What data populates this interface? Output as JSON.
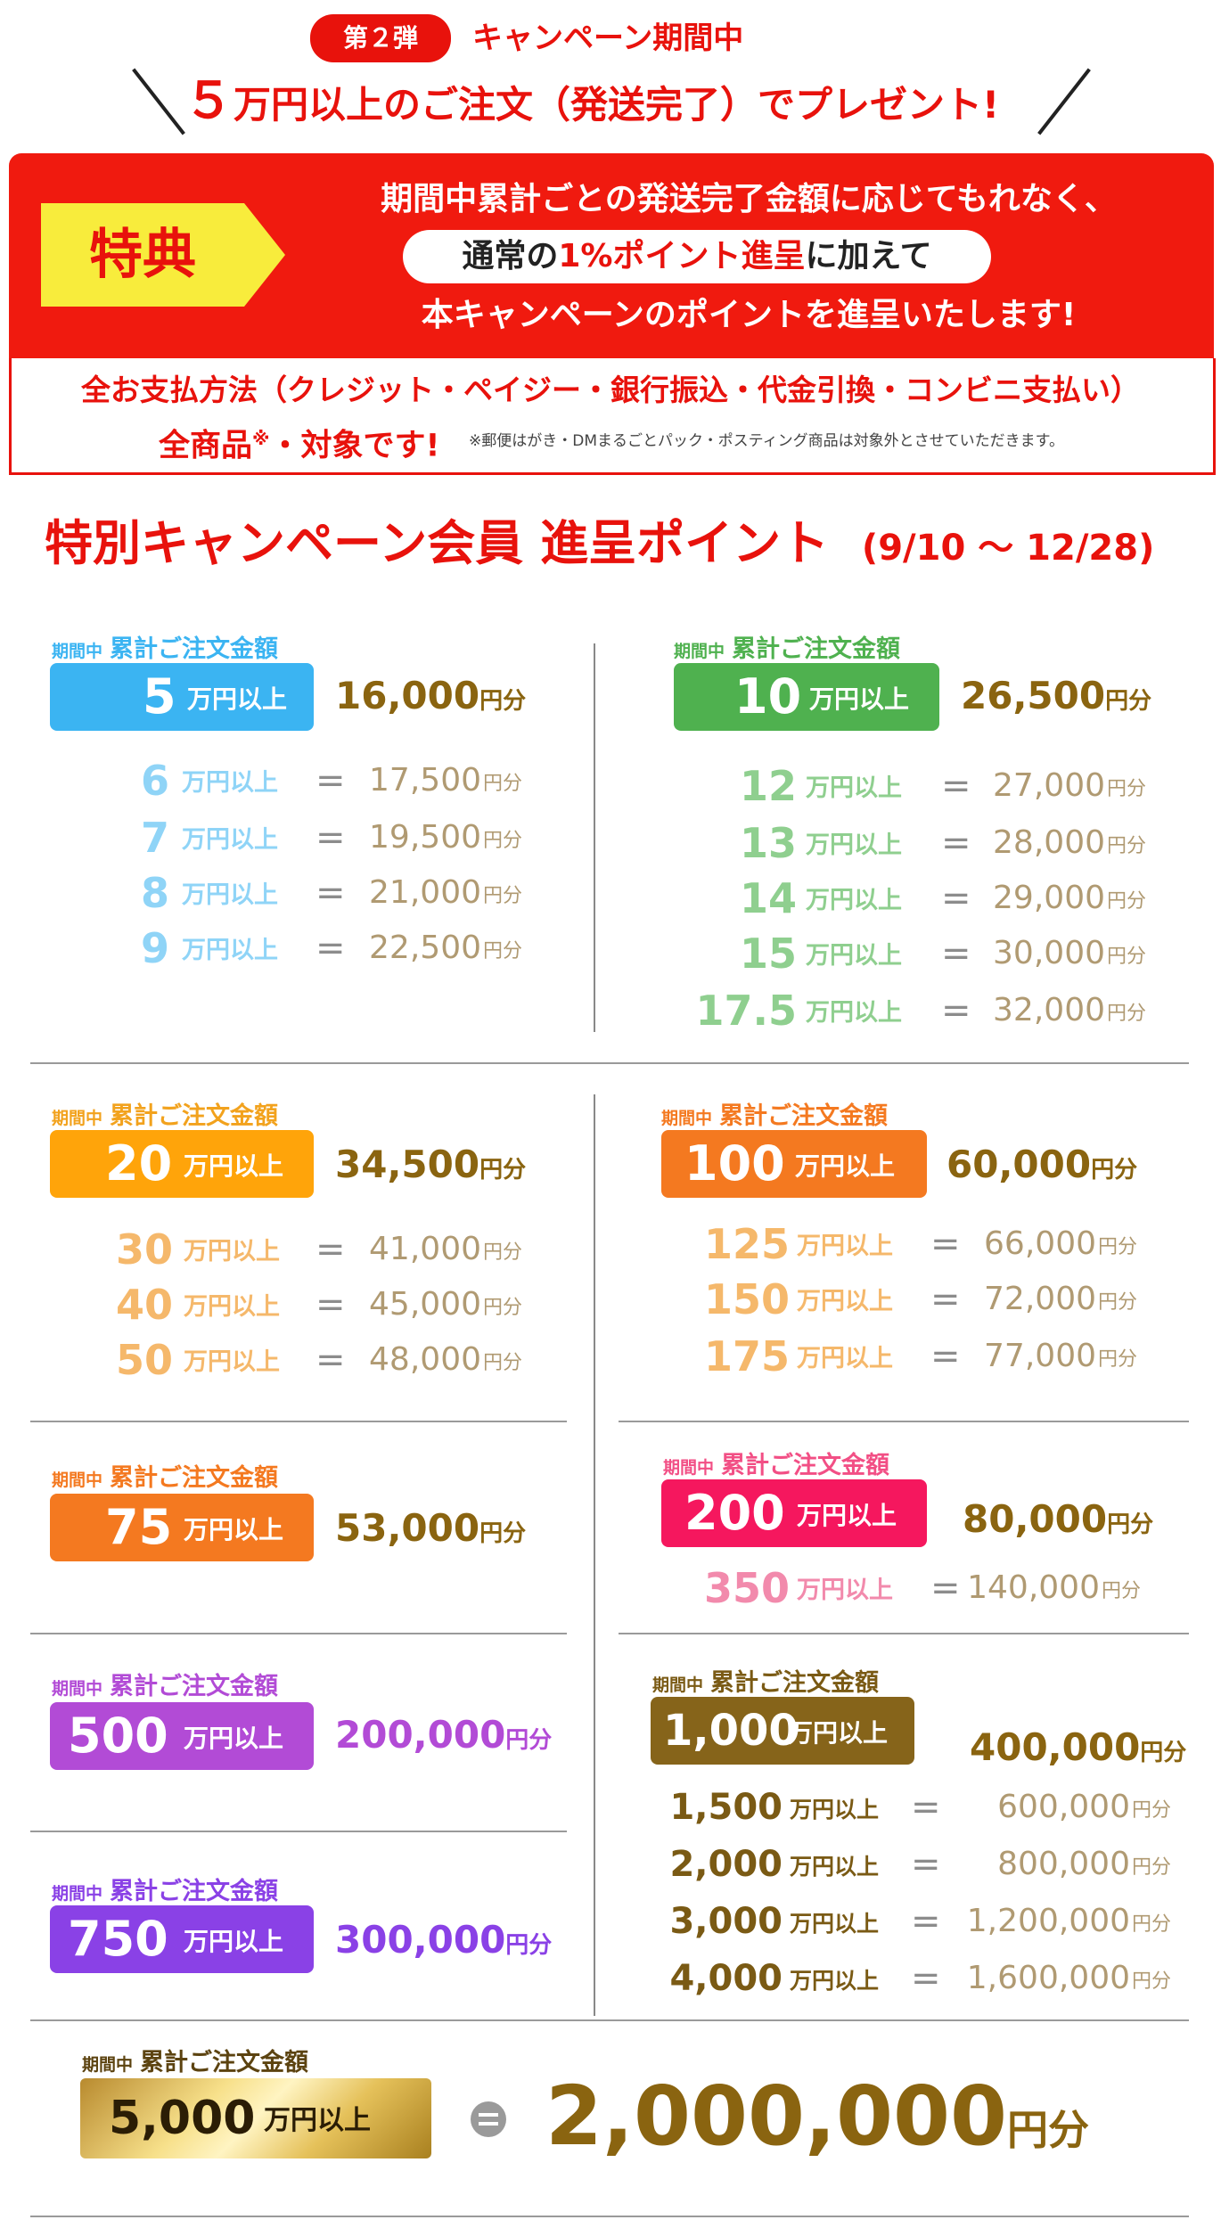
{
  "header": {
    "round_badge": "第２弾",
    "campaign_period": "キャンペーン期間中",
    "headline_num": "５",
    "headline_rest": "万円以上のご注文（発送完了）でプレゼント!"
  },
  "benefit": {
    "tag": "特典",
    "line1": "期間中累計ごとの発送完了金額に応じてもれなく、",
    "pill_pre": "通常の",
    "pill_highlight": "1%ポイント進呈",
    "pill_post": "に加えて",
    "line3": "本キャンペーンのポイントを進呈いたします!",
    "payment": "全お支払方法（クレジット・ペイジー・銀行振込・代金引換・コンビニ支払い）",
    "scope_main": "全商品",
    "scope_mark": "※",
    "scope_tail": "・対象です!",
    "note": "※郵便はがき・DMまるごとパック・ポスティング商品は対象外とさせていただきます。"
  },
  "section": {
    "title": "特別キャンペーン会員 進呈ポイント",
    "period": "(9/10 〜 12/28)"
  },
  "labels": {
    "period_small": "期間中",
    "cumulative": "累計ご注文金額",
    "unit_man_ijo": "万円以上",
    "unit_yen_bun": "円分",
    "equals": "="
  },
  "colors": {
    "red": "#e8120c",
    "yellow": "#f8ec3c",
    "blue": "#3bb4f2",
    "green": "#4fb14f",
    "orange": "#ffa40a",
    "orange_dark": "#f47920",
    "pink": "#f5175e",
    "purple": "#b24bd6",
    "violet": "#8a41e6",
    "brown": "#7a5a14",
    "gold": "#e3c04d"
  },
  "tiers": {
    "t5": {
      "amount": "5",
      "points": "16,000",
      "rows": [
        [
          "6",
          "17,500"
        ],
        [
          "7",
          "19,500"
        ],
        [
          "8",
          "21,000"
        ],
        [
          "9",
          "22,500"
        ]
      ]
    },
    "t10": {
      "amount": "10",
      "points": "26,500",
      "rows": [
        [
          "12",
          "27,000"
        ],
        [
          "13",
          "28,000"
        ],
        [
          "14",
          "29,000"
        ],
        [
          "15",
          "30,000"
        ],
        [
          "17.5",
          "32,000"
        ]
      ]
    },
    "t20": {
      "amount": "20",
      "points": "34,500",
      "rows": [
        [
          "30",
          "41,000"
        ],
        [
          "40",
          "45,000"
        ],
        [
          "50",
          "48,000"
        ]
      ]
    },
    "t100": {
      "amount": "100",
      "points": "60,000",
      "rows": [
        [
          "125",
          "66,000"
        ],
        [
          "150",
          "72,000"
        ],
        [
          "175",
          "77,000"
        ]
      ]
    },
    "t75": {
      "amount": "75",
      "points": "53,000"
    },
    "t200": {
      "amount": "200",
      "points": "80,000",
      "rows": [
        [
          "350",
          "140,000"
        ]
      ]
    },
    "t500": {
      "amount": "500",
      "points": "200,000"
    },
    "t1000": {
      "amount": "1,000",
      "points": "400,000",
      "rows": [
        [
          "1,500",
          "600,000"
        ],
        [
          "2,000",
          "800,000"
        ],
        [
          "3,000",
          "1,200,000"
        ],
        [
          "4,000",
          "1,600,000"
        ]
      ]
    },
    "t750": {
      "amount": "750",
      "points": "300,000"
    },
    "t5000": {
      "amount": "5,000",
      "points": "2,000,000"
    }
  }
}
